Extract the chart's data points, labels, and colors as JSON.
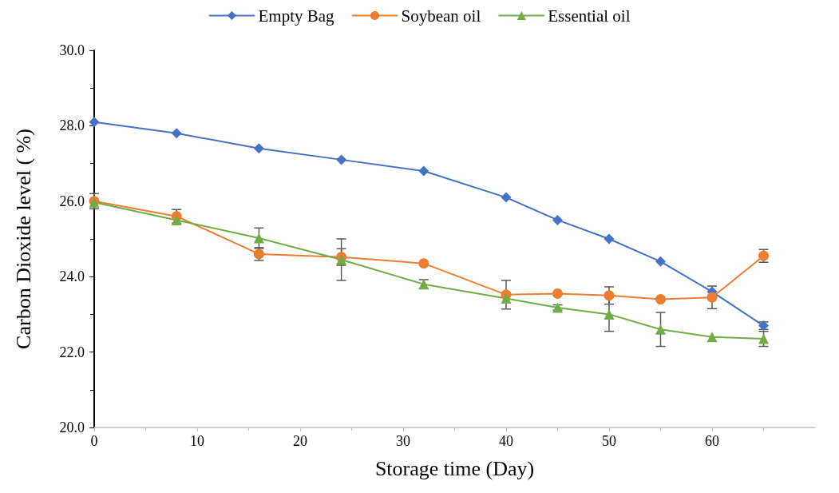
{
  "chart_data": {
    "type": "line",
    "xlabel": "Storage time (Day)",
    "ylabel": "Carbon Dioxide level ( %)",
    "x": [
      0,
      8,
      16,
      24,
      32,
      40,
      45,
      50,
      55,
      60,
      65
    ],
    "series": [
      {
        "name": "Empty Bag",
        "color": "#4472c4",
        "marker": "diamond",
        "values": [
          28.1,
          27.8,
          27.4,
          27.1,
          26.8,
          26.1,
          25.5,
          25.0,
          24.4,
          23.6,
          22.7
        ],
        "errors": [
          null,
          null,
          null,
          null,
          null,
          null,
          null,
          null,
          null,
          null,
          0.1
        ]
      },
      {
        "name": "Soybean oil",
        "color": "#ed7d31",
        "marker": "circle",
        "values": [
          26.0,
          25.6,
          24.6,
          24.52,
          24.35,
          23.52,
          23.55,
          23.5,
          23.4,
          23.45,
          24.55
        ],
        "errors": [
          0.2,
          0.18,
          0.17,
          0.22,
          null,
          0.38,
          null,
          0.23,
          null,
          0.3,
          0.17
        ]
      },
      {
        "name": "Essential oil",
        "color": "#70ad47",
        "marker": "triangle",
        "values": [
          25.97,
          25.5,
          25.02,
          24.45,
          23.8,
          23.42,
          23.18,
          23.0,
          22.6,
          22.4,
          22.35
        ],
        "errors": [
          null,
          null,
          0.27,
          0.55,
          0.12,
          null,
          0.07,
          0.45,
          0.45,
          null,
          0.2
        ]
      }
    ],
    "xlim": [
      0,
      70
    ],
    "xticks": [
      0,
      10,
      20,
      30,
      40,
      50,
      60
    ],
    "ylim": [
      20,
      30
    ],
    "yticks": [
      {
        "value": 20,
        "label": "20.0"
      },
      {
        "value": 22,
        "label": "22.0"
      },
      {
        "value": 24,
        "label": "24.0"
      },
      {
        "value": 26,
        "label": "26.0"
      },
      {
        "value": 28,
        "label": "28.0"
      },
      {
        "value": 30,
        "label": "30.0"
      }
    ],
    "grid": false,
    "legend": "top",
    "line_style": "solid"
  }
}
